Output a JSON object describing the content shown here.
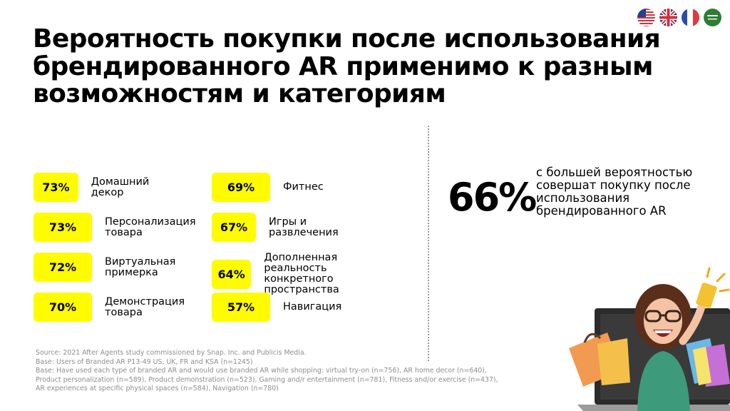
{
  "title": "Вероятность покупки после использования брендированного AR применимо к разным возможностям и категориям",
  "flags": [
    "us-flag-icon",
    "uk-flag-icon",
    "france-flag-icon",
    "saudi-flag-icon"
  ],
  "colors": {
    "accent": "#fffc00",
    "text": "#000000",
    "source": "#8e8e8e"
  },
  "stats": [
    {
      "value": "73%",
      "label": "Домашний декор"
    },
    {
      "value": "73%",
      "label": "Персонализация\nтовара"
    },
    {
      "value": "72%",
      "label": "Виртуальная\nпримерка"
    },
    {
      "value": "70%",
      "label": "Демонстрация\nтовара"
    },
    {
      "value": "69%",
      "label": "Фитнес"
    },
    {
      "value": "67%",
      "label": "Игры и развлечения"
    },
    {
      "value": "64%",
      "label": "Дополненная реальность\nконкретного\nпространства"
    },
    {
      "value": "57%",
      "label": "Навигация"
    }
  ],
  "highlight": {
    "value": "66%",
    "text": "с большей вероятностью\nсовершат покупку после\nиспользования\nбрендированного AR"
  },
  "source": [
    "Source: 2021 After Agents study commissioned by Snap. Inc. and Publicis Media.",
    "Base: Users of Branded AR P13-49 US, UK, FR and KSA (n=1245)",
    "Base: Have used each type of branded AR and would use branded AR while shopping: virtual try-on (n=756), AR home decor (n=640),",
    "Product personalization (n=589), Product demonstration (n=523), Gaming and/r entertainment (n=781), Fitness and/or exercise (n=437),",
    "AR experiences at specific physical spaces (n=584), Navigation (n=780)"
  ]
}
